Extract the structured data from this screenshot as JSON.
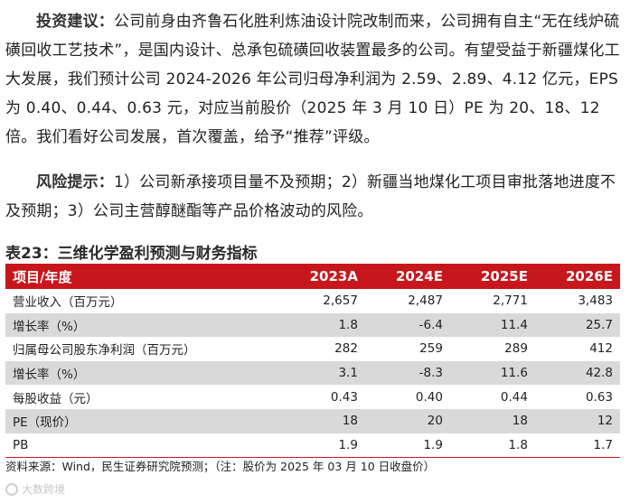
{
  "investment": {
    "lead": "投资建议：",
    "text": "公司前身由齐鲁石化胜利炼油设计院改制而来，公司拥有自主“无在线炉硫磺回收工艺技术”，是国内设计、总承包硫磺回收装置最多的公司。有望受益于新疆煤化工大发展，我们预计公司 2024-2026 年公司归母净利润为 2.59、2.89、4.12 亿元，EPS 为 0.40、0.44、0.63 元，对应当前股价（2025 年 3 月 10 日）PE 为 20、18、12 倍。我们看好公司发展，首次覆盖，给予“推荐”评级。"
  },
  "risk": {
    "lead": "风险提示：",
    "text": "1）公司新承接项目量不及预期；2）新疆当地煤化工项目审批落地进度不及预期；3）公司主营醇醚酯等产品价格波动的风险。"
  },
  "table": {
    "title": "表23：三维化学盈利预测与财务指标",
    "headers": [
      "项目/年度",
      "2023A",
      "2024E",
      "2025E",
      "2026E"
    ],
    "rows": [
      [
        "营业收入（百万元）",
        "2,657",
        "2,487",
        "2,771",
        "3,483"
      ],
      [
        "增长率（%）",
        "1.8",
        "-6.4",
        "11.4",
        "25.7"
      ],
      [
        "归属母公司股东净利润（百万元）",
        "282",
        "259",
        "289",
        "412"
      ],
      [
        "增长率（%）",
        "3.1",
        "-8.3",
        "11.6",
        "42.8"
      ],
      [
        "每股收益（元）",
        "0.43",
        "0.40",
        "0.44",
        "0.63"
      ],
      [
        "PE（现价）",
        "18",
        "20",
        "18",
        "12"
      ],
      [
        "PB",
        "1.9",
        "1.9",
        "1.8",
        "1.7"
      ]
    ],
    "source": "资料来源：Wind，民生证券研究院预测；（注：股价为 2025 年 03 月 10 日收盘价）"
  },
  "watermark": {
    "text": "大数跨境"
  },
  "colors": {
    "header_bg": "#c8161d",
    "stripe_bg": "#d9d9d9"
  }
}
